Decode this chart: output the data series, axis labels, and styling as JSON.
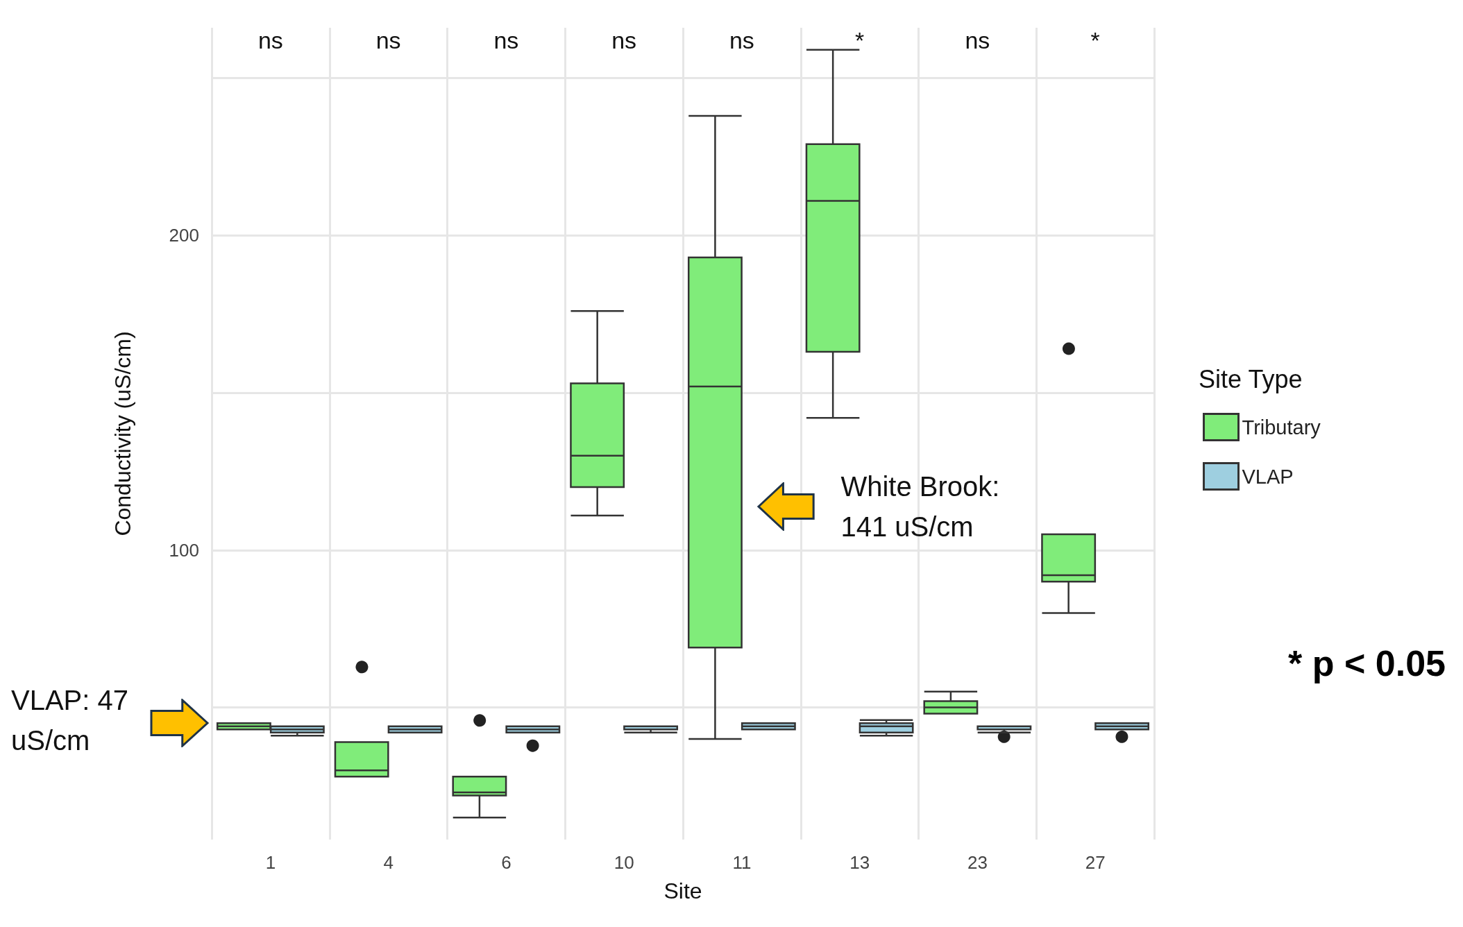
{
  "chart_data": {
    "type": "box",
    "xlabel": "Site",
    "ylabel": "Conductivity (uS/cm)",
    "legend_title": "Site Type",
    "legend": "right",
    "grid": true,
    "categories": [
      "1",
      "4",
      "6",
      "10",
      "11",
      "13",
      "23",
      "27"
    ],
    "ylim": [
      8,
      266
    ],
    "yticks": [
      {
        "value": 50,
        "label": null
      },
      100,
      {
        "value": 150,
        "label": null
      },
      200,
      {
        "value": 250,
        "label": null
      }
    ],
    "series": [
      {
        "name": "Tributary",
        "color": "#80ec7a",
        "boxes": [
          {
            "low": 43,
            "q1": 43,
            "median": 44,
            "q3": 45,
            "high": 45
          },
          {
            "low": 28,
            "q1": 28,
            "median": 30,
            "q3": 39,
            "high": 39,
            "outliers": [
              63
            ]
          },
          {
            "low": 15,
            "q1": 22,
            "median": 23,
            "q3": 28,
            "high": 28,
            "outliers": [
              46
            ]
          },
          {
            "low": 111,
            "q1": 120,
            "median": 130,
            "q3": 153,
            "high": 176
          },
          {
            "low": 40,
            "q1": 69,
            "median": 152,
            "q3": 193,
            "high": 238
          },
          {
            "low": 142,
            "q1": 163,
            "median": 211,
            "q3": 229,
            "high": 259
          },
          {
            "low": 48,
            "q1": 48,
            "median": 50,
            "q3": 52,
            "high": 55
          },
          {
            "low": 80,
            "q1": 90,
            "median": 92,
            "q3": 105,
            "high": 105,
            "outliers": [
              164
            ]
          }
        ]
      },
      {
        "name": "VLAP",
        "color": "#9ecfe0",
        "boxes": [
          {
            "low": 41,
            "q1": 42,
            "median": 43,
            "q3": 44,
            "high": 44
          },
          {
            "low": 42,
            "q1": 42,
            "median": 43,
            "q3": 44,
            "high": 44
          },
          {
            "low": 42,
            "q1": 42,
            "median": 43,
            "q3": 44,
            "high": 44,
            "outliers": [
              38
            ]
          },
          {
            "low": 42,
            "q1": 43,
            "median": 43,
            "q3": 44,
            "high": 44
          },
          {
            "low": 43,
            "q1": 43,
            "median": 44,
            "q3": 45,
            "high": 45
          },
          {
            "low": 41,
            "q1": 42,
            "median": 44,
            "q3": 45,
            "high": 46
          },
          {
            "low": 42,
            "q1": 43,
            "median": 43,
            "q3": 44,
            "high": 44,
            "outliers": [
              41
            ]
          },
          {
            "low": 43,
            "q1": 43,
            "median": 44,
            "q3": 45,
            "high": 45,
            "outliers": [
              41
            ]
          }
        ]
      }
    ],
    "annotations": [
      "ns",
      "ns",
      "ns",
      "ns",
      "ns",
      "*",
      "ns",
      "*",
      "White Brook: 141 uS/cm",
      "VLAP: 47 uS/cm",
      "* p < 0.05"
    ]
  }
}
